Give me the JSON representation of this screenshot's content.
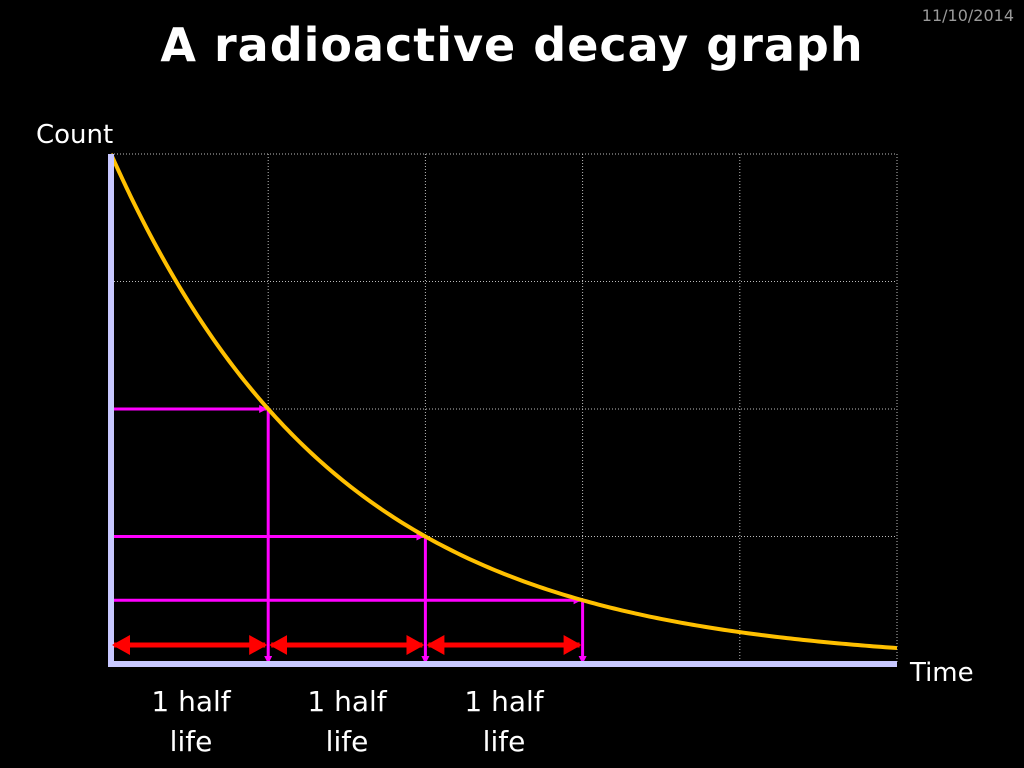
{
  "slide": {
    "date": "11/10/2014",
    "title": "A radioactive decay graph"
  },
  "chart_data": {
    "type": "line",
    "title": "A radioactive decay graph",
    "xlabel": "Time",
    "ylabel": "Count",
    "grid": true,
    "series": [
      {
        "name": "",
        "color": "#FFC000",
        "x": [
          0,
          0.5,
          1,
          1.5,
          2,
          2.5,
          3,
          3.5,
          4,
          4.5,
          5
        ],
        "y": [
          100,
          70.7,
          50,
          35.4,
          25,
          17.7,
          12.5,
          8.8,
          6.25,
          4.4,
          3.1
        ]
      }
    ],
    "xlim": [
      0,
      5
    ],
    "ylim": [
      0,
      100
    ],
    "half_life_markers": [
      {
        "time": 1,
        "count": 50
      },
      {
        "time": 2,
        "count": 25
      },
      {
        "time": 3,
        "count": 12.5
      }
    ],
    "half_life_spans": [
      {
        "from": 0,
        "to": 1,
        "label_line1": "1 half",
        "label_line2": "life"
      },
      {
        "from": 1,
        "to": 2,
        "label_line1": "1 half",
        "label_line2": "life"
      },
      {
        "from": 2,
        "to": 3,
        "label_line1": "1 half",
        "label_line2": "life"
      }
    ],
    "colors": {
      "curve": "#FFC000",
      "markers": "#FF00FF",
      "spans": "#FF0000",
      "axes": "#C8C8FF",
      "grid": "#BBBBBB"
    }
  }
}
